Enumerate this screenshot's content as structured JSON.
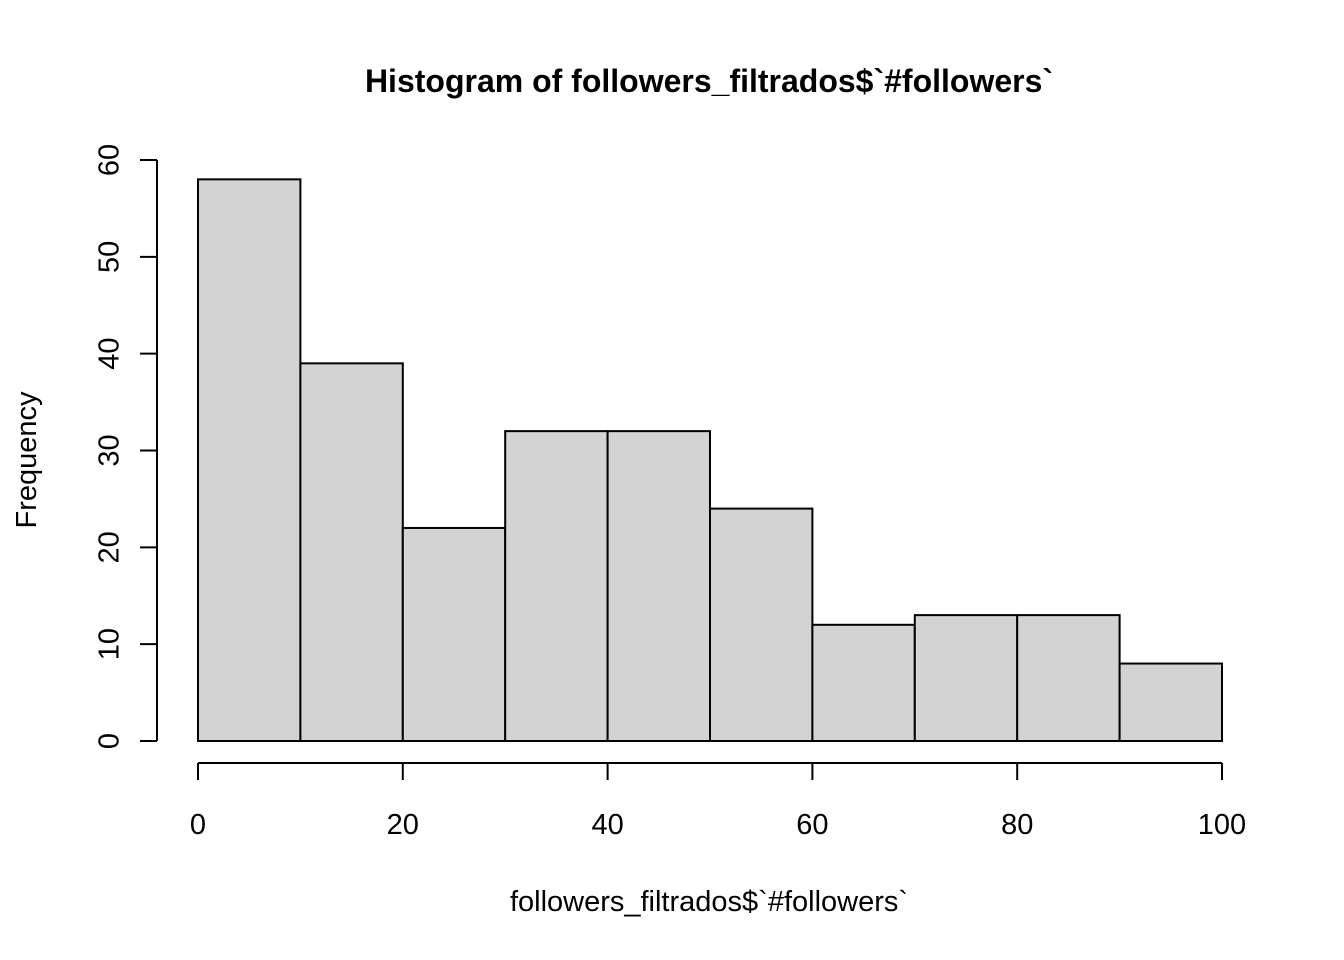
{
  "chart_data": {
    "type": "histogram",
    "title": "Histogram of followers_filtrados$`#followers`",
    "x_label": "followers_filtrados$`#followers`",
    "y_label": "Frequency",
    "bins": [
      0,
      10,
      20,
      30,
      40,
      50,
      60,
      70,
      80,
      90,
      100
    ],
    "counts": [
      58,
      39,
      22,
      32,
      32,
      24,
      12,
      13,
      13,
      8
    ],
    "color": "#d3d3d3",
    "xlim": [
      0,
      100
    ],
    "xticks": [
      0,
      20,
      40,
      60,
      80,
      100
    ],
    "ylim": [
      0,
      60
    ],
    "yticks": [
      0,
      10,
      20,
      30,
      40,
      50,
      60
    ]
  }
}
